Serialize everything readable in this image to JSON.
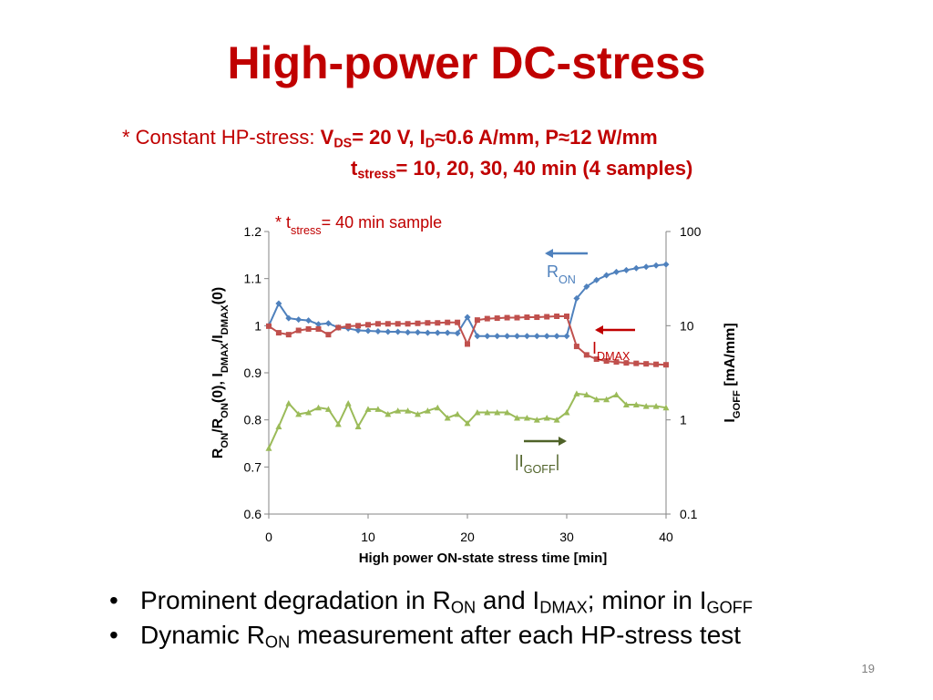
{
  "slide": {
    "title": "High-power DC-stress",
    "page_number": "19",
    "condition": {
      "prefix": "* Constant HP-stress: ",
      "v": "V",
      "v_sub": "DS",
      "v_rest": "= 20 V, I",
      "id_sub": "D",
      "id_rest": "≈0.6 A/mm, P≈12 W/mm",
      "t": "t",
      "t_sub": "stress",
      "t_rest": "= 10, 20, 30, 40 min (4 samples)"
    },
    "bullets": [
      {
        "marker": "•",
        "t1": "Prominent degradation in R",
        "s1": "ON",
        "t2": " and I",
        "s2": "DMAX",
        "t3": "; minor in I",
        "s3": "GOFF",
        "t4": ""
      },
      {
        "marker": "•",
        "t1": "Dynamic R",
        "s1": "ON",
        "t2": " measurement after each HP-stress test",
        "s2": "",
        "t3": "",
        "s3": "",
        "t4": ""
      }
    ]
  },
  "chart_data": {
    "type": "line",
    "sample_note": {
      "prefix": "* t",
      "sub": "stress",
      "rest": "= 40 min sample"
    },
    "xlabel": "High power ON-state stress time [min]",
    "ylabel_left": {
      "p1": "R",
      "s1": "ON",
      "p2": "/R",
      "s2": "ON",
      "p3": "(0), I",
      "s3": "DMAX",
      "p4": "/I",
      "s4": "DMAX",
      "p5": "(0)"
    },
    "ylabel_right": {
      "p1": "I",
      "s1": "GOFF",
      "p2": " [mA/mm]"
    },
    "xlim": [
      0,
      40
    ],
    "xticks": [
      "0",
      "10",
      "20",
      "30",
      "40"
    ],
    "ylim_left": [
      0.6,
      1.2
    ],
    "yticks_left": [
      "0.6",
      "0.7",
      "0.8",
      "0.9",
      "1",
      "1.1",
      "1.2"
    ],
    "ylim_right": [
      0.1,
      100
    ],
    "yscale_right": "log",
    "yticks_right": [
      "0.1",
      "1",
      "10",
      "100"
    ],
    "x": [
      0,
      1,
      2,
      3,
      4,
      5,
      6,
      7,
      8,
      9,
      10,
      11,
      12,
      13,
      14,
      15,
      16,
      17,
      18,
      19,
      20,
      21,
      22,
      23,
      24,
      25,
      26,
      27,
      28,
      29,
      30,
      31,
      32,
      33,
      34,
      35,
      36,
      37,
      38,
      39,
      40
    ],
    "series": [
      {
        "name_main": "R",
        "name_sub": "ON",
        "axis": "left",
        "color": "#4f81bd",
        "marker": "diamond",
        "label_color": "#4f81bd",
        "arrow": "left",
        "values": [
          1.0,
          1.047,
          1.016,
          1.013,
          1.011,
          1.003,
          1.005,
          0.996,
          0.994,
          0.99,
          0.989,
          0.988,
          0.987,
          0.987,
          0.986,
          0.986,
          0.985,
          0.985,
          0.985,
          0.984,
          1.018,
          0.978,
          0.978,
          0.978,
          0.978,
          0.978,
          0.978,
          0.978,
          0.978,
          0.978,
          0.978,
          1.058,
          1.083,
          1.097,
          1.107,
          1.114,
          1.118,
          1.122,
          1.125,
          1.128,
          1.13
        ]
      },
      {
        "name_main": "I",
        "name_sub": "DMAX",
        "axis": "left",
        "color": "#c0504d",
        "marker": "square",
        "label_color": "#c00000",
        "arrow": "left",
        "values": [
          0.999,
          0.985,
          0.981,
          0.99,
          0.993,
          0.993,
          0.981,
          0.996,
          0.999,
          1.0,
          1.002,
          1.004,
          1.004,
          1.004,
          1.004,
          1.005,
          1.006,
          1.006,
          1.007,
          1.007,
          0.961,
          1.012,
          1.015,
          1.016,
          1.017,
          1.017,
          1.018,
          1.018,
          1.019,
          1.02,
          1.02,
          0.956,
          0.938,
          0.929,
          0.925,
          0.923,
          0.921,
          0.92,
          0.919,
          0.918,
          0.917
        ]
      },
      {
        "name_main": "|I",
        "name_sub": "GOFF",
        "name_tail": "|",
        "axis": "right",
        "color": "#9bbb59",
        "marker": "triangle",
        "label_color": "#4f6228",
        "arrow": "right",
        "values": [
          0.5,
          0.85,
          1.5,
          1.15,
          1.2,
          1.35,
          1.3,
          0.9,
          1.5,
          0.85,
          1.3,
          1.3,
          1.15,
          1.25,
          1.25,
          1.15,
          1.25,
          1.35,
          1.05,
          1.15,
          0.92,
          1.2,
          1.2,
          1.2,
          1.2,
          1.05,
          1.05,
          1.0,
          1.05,
          1.0,
          1.2,
          1.9,
          1.85,
          1.65,
          1.65,
          1.85,
          1.45,
          1.45,
          1.4,
          1.4,
          1.35
        ]
      }
    ]
  }
}
